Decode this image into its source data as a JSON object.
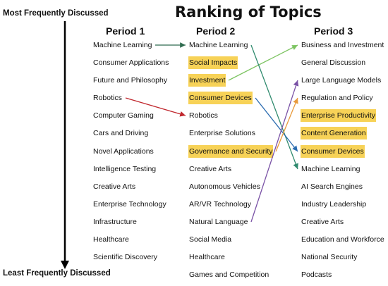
{
  "title": "Ranking of Topics",
  "axis": {
    "top_label": "Most Frequently Discussed",
    "bottom_label": "Least Frequently Discussed"
  },
  "colors": {
    "highlight": "#f7d257",
    "arrow_green_dark": "#2f6b4f",
    "arrow_red": "#c0272d",
    "arrow_light_green": "#7dc462",
    "arrow_blue": "#2b6cb0",
    "arrow_teal": "#2f8a6e",
    "arrow_purple": "#7a52a6",
    "arrow_orange": "#e89a3c"
  },
  "periods": [
    {
      "header": "Period 1",
      "topics": [
        {
          "label": "Machine Learning",
          "highlight": false
        },
        {
          "label": "Consumer Applications",
          "highlight": false
        },
        {
          "label": "Future and Philosophy",
          "highlight": false
        },
        {
          "label": "Robotics",
          "highlight": false
        },
        {
          "label": "Computer Gaming",
          "highlight": false
        },
        {
          "label": "Cars and Driving",
          "highlight": false
        },
        {
          "label": "Novel Applications",
          "highlight": false
        },
        {
          "label": "Intelligence Testing",
          "highlight": false
        },
        {
          "label": "Creative Arts",
          "highlight": false
        },
        {
          "label": "Enterprise Technology",
          "highlight": false
        },
        {
          "label": "Infrastructure",
          "highlight": false
        },
        {
          "label": "Healthcare",
          "highlight": false
        },
        {
          "label": "Scientific Discovery",
          "highlight": false
        }
      ]
    },
    {
      "header": "Period 2",
      "topics": [
        {
          "label": "Machine Learning",
          "highlight": false
        },
        {
          "label": "Social Impacts",
          "highlight": true
        },
        {
          "label": "Investment",
          "highlight": true
        },
        {
          "label": "Consumer Devices",
          "highlight": true
        },
        {
          "label": "Robotics",
          "highlight": false
        },
        {
          "label": "Enterprise Solutions",
          "highlight": false
        },
        {
          "label": "Governance and Security",
          "highlight": true
        },
        {
          "label": "Creative Arts",
          "highlight": false
        },
        {
          "label": "Autonomous Vehicles",
          "highlight": false
        },
        {
          "label": "AR/VR Technology",
          "highlight": false
        },
        {
          "label": "Natural Language",
          "highlight": false
        },
        {
          "label": "Social Media",
          "highlight": false
        },
        {
          "label": "Healthcare",
          "highlight": false
        },
        {
          "label": "Games and Competition",
          "highlight": false
        }
      ]
    },
    {
      "header": "Period 3",
      "topics": [
        {
          "label": "Business and Investment",
          "highlight": false
        },
        {
          "label": "General Discussion",
          "highlight": false
        },
        {
          "label": "Large Language Models",
          "highlight": false
        },
        {
          "label": "Regulation and Policy",
          "highlight": false
        },
        {
          "label": "Enterprise Productivity",
          "highlight": true
        },
        {
          "label": "Content Generation",
          "highlight": true
        },
        {
          "label": "Consumer Devices",
          "highlight": true
        },
        {
          "label": "Machine Learning",
          "highlight": false
        },
        {
          "label": "AI Search Engines",
          "highlight": false
        },
        {
          "label": "Industry Leadership",
          "highlight": false
        },
        {
          "label": "Creative Arts",
          "highlight": false
        },
        {
          "label": "Education and Workforce",
          "highlight": false
        },
        {
          "label": "National Security",
          "highlight": false
        },
        {
          "label": "Podcasts",
          "highlight": false
        }
      ]
    }
  ],
  "transitions": [
    {
      "from_period": 1,
      "from_topic": "Machine Learning",
      "to_period": 2,
      "to_topic": "Machine Learning",
      "color": "#2f6b4f"
    },
    {
      "from_period": 1,
      "from_topic": "Robotics",
      "to_period": 2,
      "to_topic": "Robotics",
      "color": "#c0272d"
    },
    {
      "from_period": 2,
      "from_topic": "Investment",
      "to_period": 3,
      "to_topic": "Business and Investment",
      "color": "#7dc462"
    },
    {
      "from_period": 2,
      "from_topic": "Machine Learning",
      "to_period": 3,
      "to_topic": "Machine Learning",
      "color": "#2f8a6e"
    },
    {
      "from_period": 2,
      "from_topic": "Consumer Devices",
      "to_period": 3,
      "to_topic": "Consumer Devices",
      "color": "#2b6cb0"
    },
    {
      "from_period": 2,
      "from_topic": "Natural Language",
      "to_period": 3,
      "to_topic": "Large Language Models",
      "color": "#7a52a6"
    },
    {
      "from_period": 2,
      "from_topic": "Governance and Security",
      "to_period": 3,
      "to_topic": "Regulation and Policy",
      "color": "#e89a3c"
    }
  ]
}
